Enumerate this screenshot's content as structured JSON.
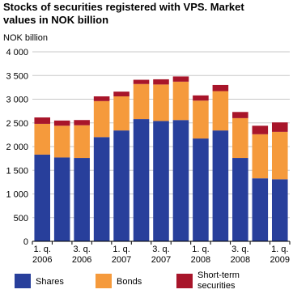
{
  "chart_data": {
    "type": "stacked-bar",
    "title": "Stocks of securities registered with VPS. Market values in NOK billion",
    "y_label": "NOK billion",
    "categories": [
      "1. q. 2006",
      null,
      "3. q. 2006",
      null,
      "1. q. 2007",
      null,
      "3. q. 2007",
      null,
      "1. q. 2008",
      null,
      "3. q. 2008",
      null,
      "1. q. 2009"
    ],
    "series": [
      {
        "name": "Shares",
        "color": "#283f9b",
        "values": [
          1830,
          1770,
          1760,
          2200,
          2340,
          2580,
          2540,
          2560,
          2170,
          2340,
          1760,
          1330,
          1310
        ]
      },
      {
        "name": "Bonds",
        "color": "#f59a3c",
        "values": [
          650,
          670,
          690,
          760,
          720,
          740,
          770,
          810,
          800,
          830,
          840,
          930,
          1000
        ]
      },
      {
        "name": "Short-term securities",
        "color": "#a8152a",
        "values": [
          135,
          110,
          110,
          100,
          100,
          90,
          110,
          110,
          110,
          130,
          130,
          180,
          200
        ]
      }
    ],
    "ylim": [
      0,
      4000
    ],
    "yticks": [
      0,
      {
        "value": 500,
        "label": "500"
      },
      {
        "value": 1000,
        "label": "1 000"
      },
      {
        "value": 1500,
        "label": "1 500"
      },
      {
        "value": 2000,
        "label": "2 000"
      },
      {
        "value": 2500,
        "label": "2 500"
      },
      {
        "value": 3000,
        "label": "3 000"
      },
      {
        "value": 3500,
        "label": "3 500"
      },
      {
        "value": 4000,
        "label": "4 000"
      }
    ],
    "grid": true
  }
}
